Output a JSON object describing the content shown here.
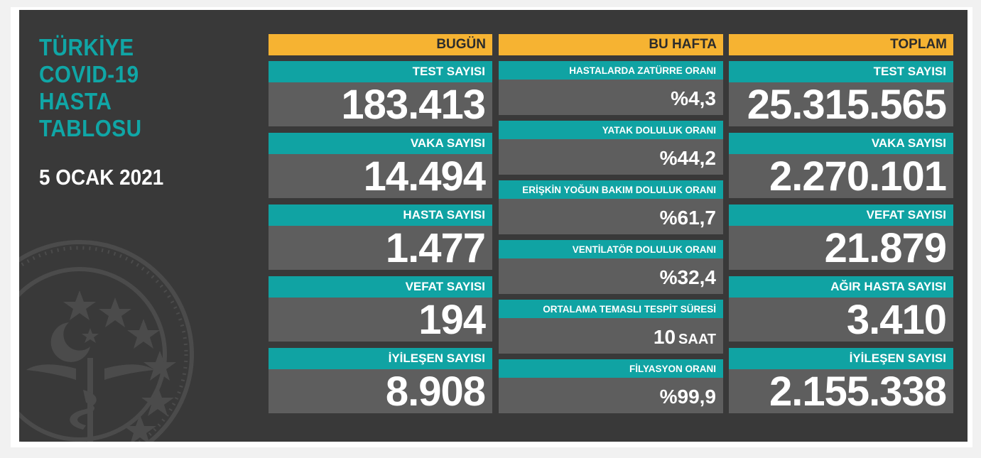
{
  "title_lines": [
    "TÜRKİYE",
    "COVID-19",
    "HASTA",
    "TABLOSU"
  ],
  "date": "5 OCAK 2021",
  "colors": {
    "panel": "#393939",
    "teal": "#10a3a3",
    "header": "#f6b332",
    "card": "#5e5e5e"
  },
  "today": {
    "header": "BUGÜN",
    "items": [
      {
        "label": "TEST SAYISI",
        "value": "183.413"
      },
      {
        "label": "VAKA SAYISI",
        "value": "14.494"
      },
      {
        "label": "HASTA SAYISI",
        "value": "1.477"
      },
      {
        "label": "VEFAT SAYISI",
        "value": "194"
      },
      {
        "label": "İYİLEŞEN SAYISI",
        "value": "8.908"
      }
    ]
  },
  "week": {
    "header": "BU HAFTA",
    "items": [
      {
        "label": "HASTALARDA ZATÜRRE ORANI",
        "value": "%4,3",
        "unit": ""
      },
      {
        "label": "YATAK DOLULUK ORANI",
        "value": "%44,2",
        "unit": ""
      },
      {
        "label": "ERİŞKİN YOĞUN BAKIM DOLULUK ORANI",
        "value": "%61,7",
        "unit": ""
      },
      {
        "label": "VENTİLATÖR DOLULUK ORANI",
        "value": "%32,4",
        "unit": ""
      },
      {
        "label": "ORTALAMA TEMASLI TESPİT SÜRESİ",
        "value": "10",
        "unit": "SAAT"
      },
      {
        "label": "FİLYASYON ORANI",
        "value": "%99,9",
        "unit": ""
      }
    ]
  },
  "total": {
    "header": "TOPLAM",
    "items": [
      {
        "label": "TEST SAYISI",
        "value": "25.315.565"
      },
      {
        "label": "VAKA SAYISI",
        "value": "2.270.101"
      },
      {
        "label": "VEFAT SAYISI",
        "value": "21.879"
      },
      {
        "label": "AĞIR HASTA SAYISI",
        "value": "3.410"
      },
      {
        "label": "İYİLEŞEN SAYISI",
        "value": "2.155.338"
      }
    ]
  }
}
